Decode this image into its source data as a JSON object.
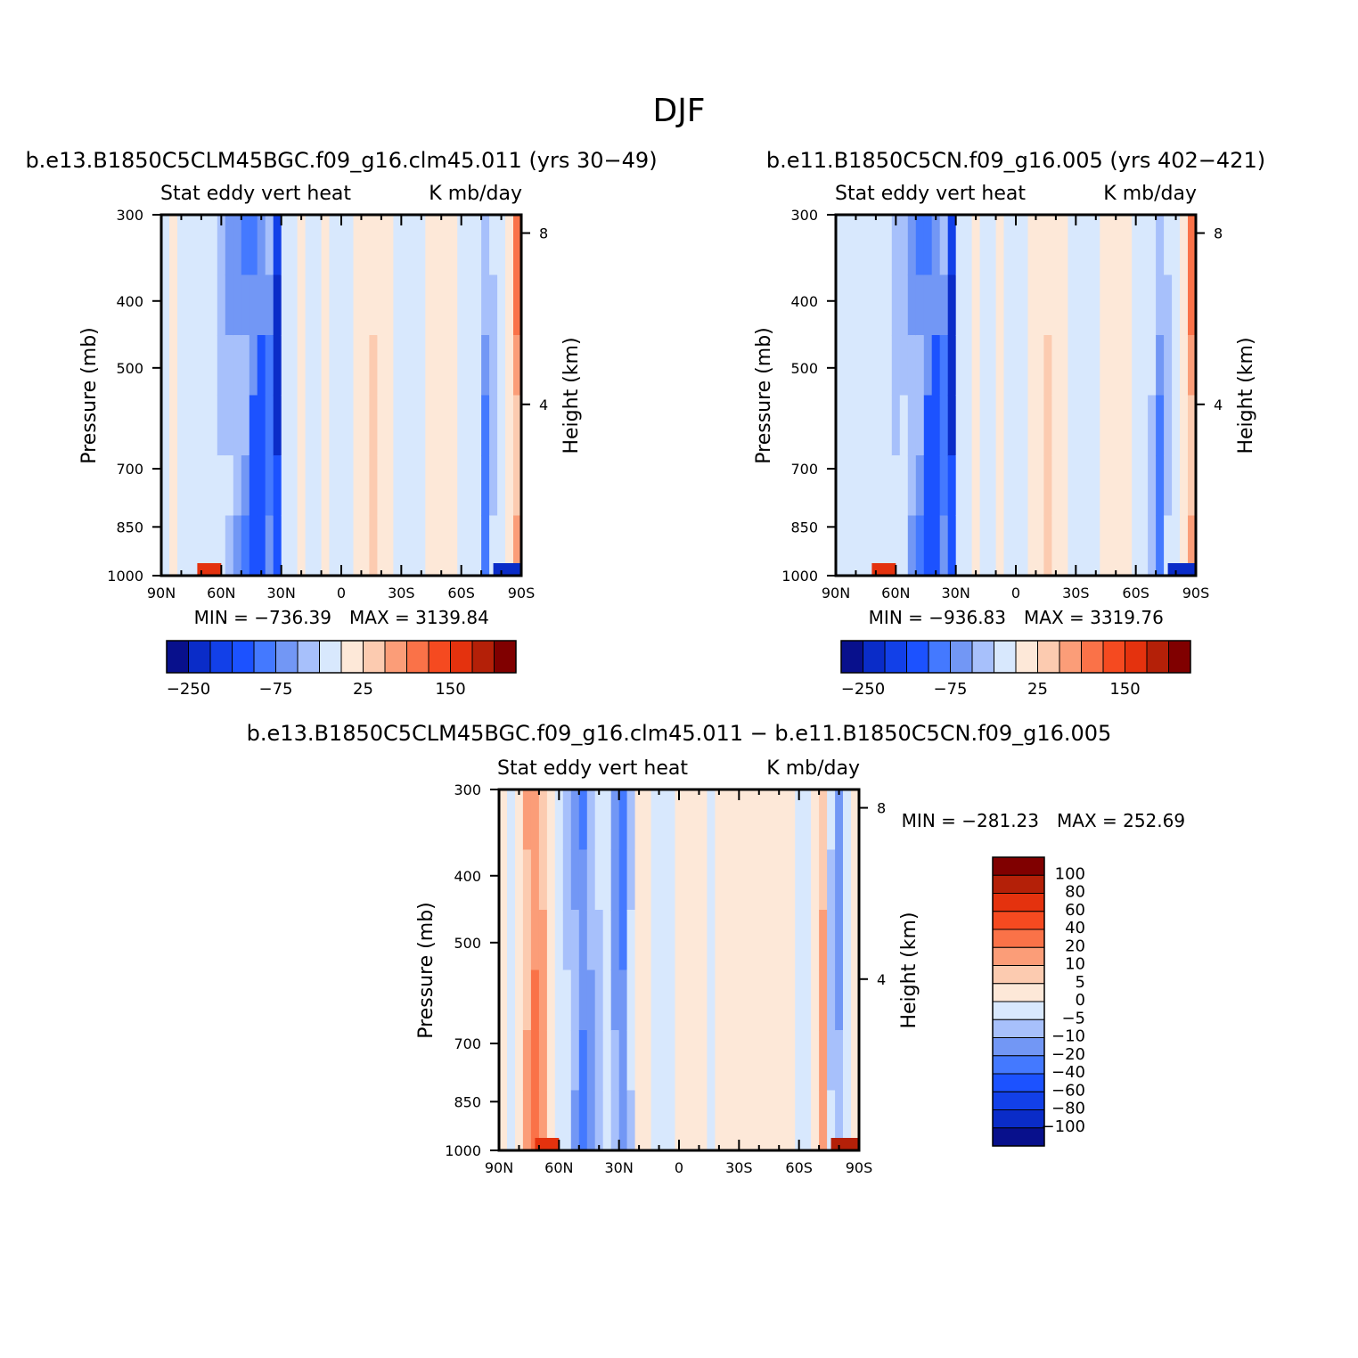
{
  "page": {
    "title": "DJF"
  },
  "palettes": {
    "full": [
      "#08108c",
      "#0a2cc8",
      "#1240e8",
      "#1c52ff",
      "#4479ff",
      "#7297f5",
      "#a7c0fb",
      "#d8e8fd",
      "#fde8d8",
      "#fccbb0",
      "#fb9d78",
      "#fa7248",
      "#f54a20",
      "#e4320e",
      "#b42008",
      "#800000"
    ],
    "diff": [
      "#08108c",
      "#0a2cc8",
      "#1240e8",
      "#1c52ff",
      "#4479ff",
      "#7297f5",
      "#a7c0fb",
      "#d8e8fd",
      "#fde8d8",
      "#fccbb0",
      "#fb9d78",
      "#fa7248",
      "#f54a20",
      "#e4320e",
      "#b42008",
      "#800000"
    ]
  },
  "chart_data": [
    {
      "id": "p1",
      "type": "heatmap",
      "title": "b.e13.B1850C5CLM45BGC.f09_g16.clm45.011 (yrs 30−49)",
      "variable": "Stat eddy vert heat",
      "units": "K mb/day",
      "xlabel": "",
      "ylabel": "Pressure (mb)",
      "y2label": "Height (km)",
      "x_ticks": [
        "90N",
        "60N",
        "30N",
        "0",
        "30S",
        "60S",
        "90S"
      ],
      "y_ticks": [
        "300",
        "400",
        "500",
        "700",
        "850",
        "1000"
      ],
      "y2_ticks": [
        "8",
        "4"
      ],
      "xlim": [
        90,
        -90
      ],
      "ylim": [
        1000,
        300
      ],
      "min_text": "MIN = −736.39",
      "max_text": "MAX = 3139.84",
      "colorbar": {
        "orientation": "horizontal",
        "labels": [
          "−250",
          "−75",
          "25",
          "150"
        ]
      },
      "columns": [
        {
          "lat": 88,
          "v": -5
        },
        {
          "lat": 84,
          "v": 5
        },
        {
          "lat": 80,
          "v": -10
        },
        {
          "lat": 76,
          "v": -5
        },
        {
          "lat": 72,
          "v": -20
        },
        {
          "lat": 68,
          "v": -10
        },
        {
          "lat": 64,
          "v": -20
        },
        {
          "lat": 60,
          "v": -40
        },
        {
          "lat": 56,
          "v": -60
        },
        {
          "lat": 52,
          "v": -75
        },
        {
          "lat": 48,
          "v": -100
        },
        {
          "lat": 44,
          "v": -150
        },
        {
          "lat": 40,
          "v": -150
        },
        {
          "lat": 36,
          "v": -100
        },
        {
          "lat": 32,
          "v": -250
        },
        {
          "lat": 28,
          "v": -20
        },
        {
          "lat": 24,
          "v": -5
        },
        {
          "lat": 20,
          "v": 5
        },
        {
          "lat": 16,
          "v": -10
        },
        {
          "lat": 12,
          "v": -5
        },
        {
          "lat": 8,
          "v": 5
        },
        {
          "lat": 4,
          "v": -5
        },
        {
          "lat": 0,
          "v": -5
        },
        {
          "lat": -4,
          "v": -5
        },
        {
          "lat": -8,
          "v": 5
        },
        {
          "lat": -12,
          "v": 25
        },
        {
          "lat": -16,
          "v": 50
        },
        {
          "lat": -20,
          "v": 25
        },
        {
          "lat": -24,
          "v": 5
        },
        {
          "lat": -28,
          "v": -5
        },
        {
          "lat": -32,
          "v": -5
        },
        {
          "lat": -36,
          "v": -5
        },
        {
          "lat": -40,
          "v": -5
        },
        {
          "lat": -44,
          "v": 5
        },
        {
          "lat": -48,
          "v": 5
        },
        {
          "lat": -52,
          "v": 25
        },
        {
          "lat": -56,
          "v": 5
        },
        {
          "lat": -60,
          "v": -5
        },
        {
          "lat": -64,
          "v": -10
        },
        {
          "lat": -68,
          "v": -20
        },
        {
          "lat": -72,
          "v": -100
        },
        {
          "lat": -76,
          "v": -40
        },
        {
          "lat": -80,
          "v": -10
        },
        {
          "lat": -84,
          "v": 5
        },
        {
          "lat": -88,
          "v": 100
        }
      ]
    },
    {
      "id": "p2",
      "type": "heatmap",
      "title": "b.e11.B1850C5CN.f09_g16.005 (yrs 402−421)",
      "variable": "Stat eddy vert heat",
      "units": "K mb/day",
      "xlabel": "",
      "ylabel": "Pressure (mb)",
      "y2label": "Height (km)",
      "x_ticks": [
        "90N",
        "60N",
        "30N",
        "0",
        "30S",
        "60S",
        "90S"
      ],
      "y_ticks": [
        "300",
        "400",
        "500",
        "700",
        "850",
        "1000"
      ],
      "y2_ticks": [
        "8",
        "4"
      ],
      "xlim": [
        90,
        -90
      ],
      "ylim": [
        1000,
        300
      ],
      "min_text": "MIN = −936.83",
      "max_text": "MAX = 3319.76",
      "colorbar": {
        "orientation": "horizontal",
        "labels": [
          "−250",
          "−75",
          "25",
          "150"
        ]
      },
      "columns": [
        {
          "lat": 88,
          "v": -5
        },
        {
          "lat": 84,
          "v": -10
        },
        {
          "lat": 80,
          "v": -10
        },
        {
          "lat": 76,
          "v": -5
        },
        {
          "lat": 72,
          "v": -20
        },
        {
          "lat": 68,
          "v": -10
        },
        {
          "lat": 64,
          "v": -20
        },
        {
          "lat": 60,
          "v": -40
        },
        {
          "lat": 56,
          "v": -40
        },
        {
          "lat": 52,
          "v": -75
        },
        {
          "lat": 48,
          "v": -100
        },
        {
          "lat": 44,
          "v": -150
        },
        {
          "lat": 40,
          "v": -150
        },
        {
          "lat": 36,
          "v": -100
        },
        {
          "lat": 32,
          "v": -250
        },
        {
          "lat": 28,
          "v": -20
        },
        {
          "lat": 24,
          "v": -5
        },
        {
          "lat": 20,
          "v": 5
        },
        {
          "lat": 16,
          "v": -10
        },
        {
          "lat": 12,
          "v": -5
        },
        {
          "lat": 8,
          "v": 5
        },
        {
          "lat": 4,
          "v": -5
        },
        {
          "lat": 0,
          "v": -5
        },
        {
          "lat": -4,
          "v": -5
        },
        {
          "lat": -8,
          "v": 5
        },
        {
          "lat": -12,
          "v": 25
        },
        {
          "lat": -16,
          "v": 50
        },
        {
          "lat": -20,
          "v": 25
        },
        {
          "lat": -24,
          "v": 5
        },
        {
          "lat": -28,
          "v": -5
        },
        {
          "lat": -32,
          "v": -5
        },
        {
          "lat": -36,
          "v": -5
        },
        {
          "lat": -40,
          "v": -5
        },
        {
          "lat": -44,
          "v": 5
        },
        {
          "lat": -48,
          "v": 5
        },
        {
          "lat": -52,
          "v": 25
        },
        {
          "lat": -56,
          "v": 5
        },
        {
          "lat": -60,
          "v": -5
        },
        {
          "lat": -64,
          "v": -10
        },
        {
          "lat": -68,
          "v": -40
        },
        {
          "lat": -72,
          "v": -100
        },
        {
          "lat": -76,
          "v": -40
        },
        {
          "lat": -80,
          "v": -10
        },
        {
          "lat": -84,
          "v": 5
        },
        {
          "lat": -88,
          "v": 100
        }
      ]
    },
    {
      "id": "p3",
      "type": "heatmap",
      "title": "b.e13.B1850C5CLM45BGC.f09_g16.clm45.011 − b.e11.B1850C5CN.f09_g16.005",
      "variable": "Stat eddy vert heat",
      "units": "K mb/day",
      "xlabel": "",
      "ylabel": "Pressure (mb)",
      "y2label": "Height (km)",
      "x_ticks": [
        "90N",
        "60N",
        "30N",
        "0",
        "30S",
        "60S",
        "90S"
      ],
      "y_ticks": [
        "300",
        "400",
        "500",
        "700",
        "850",
        "1000"
      ],
      "y2_ticks": [
        "8",
        "4"
      ],
      "xlim": [
        90,
        -90
      ],
      "ylim": [
        1000,
        300
      ],
      "min_text": "MIN = −281.23",
      "max_text": "MAX = 252.69",
      "colorbar": {
        "orientation": "vertical",
        "labels": [
          "100",
          "80",
          "60",
          "40",
          "20",
          "10",
          "5",
          "0",
          "−5",
          "−10",
          "−20",
          "−40",
          "−60",
          "−80",
          "−100"
        ]
      },
      "columns": [
        {
          "lat": 88,
          "v": 2
        },
        {
          "lat": 84,
          "v": -3
        },
        {
          "lat": 80,
          "v": 3
        },
        {
          "lat": 76,
          "v": 15
        },
        {
          "lat": 72,
          "v": 30
        },
        {
          "lat": 68,
          "v": 15
        },
        {
          "lat": 64,
          "v": 5
        },
        {
          "lat": 60,
          "v": -3
        },
        {
          "lat": 56,
          "v": -8
        },
        {
          "lat": 52,
          "v": -15
        },
        {
          "lat": 48,
          "v": -30
        },
        {
          "lat": 44,
          "v": -15
        },
        {
          "lat": 40,
          "v": -8
        },
        {
          "lat": 36,
          "v": -3
        },
        {
          "lat": 32,
          "v": -15
        },
        {
          "lat": 28,
          "v": -30
        },
        {
          "lat": 24,
          "v": -8
        },
        {
          "lat": 20,
          "v": 3
        },
        {
          "lat": 16,
          "v": 3
        },
        {
          "lat": 12,
          "v": -3
        },
        {
          "lat": 8,
          "v": -3
        },
        {
          "lat": 4,
          "v": -3
        },
        {
          "lat": 0,
          "v": 3
        },
        {
          "lat": -4,
          "v": 3
        },
        {
          "lat": -8,
          "v": 3
        },
        {
          "lat": -12,
          "v": 3
        },
        {
          "lat": -16,
          "v": -3
        },
        {
          "lat": -20,
          "v": 3
        },
        {
          "lat": -24,
          "v": 3
        },
        {
          "lat": -28,
          "v": 3
        },
        {
          "lat": -32,
          "v": 3
        },
        {
          "lat": -36,
          "v": 3
        },
        {
          "lat": -40,
          "v": 3
        },
        {
          "lat": -44,
          "v": 3
        },
        {
          "lat": -48,
          "v": 3
        },
        {
          "lat": -52,
          "v": 3
        },
        {
          "lat": -56,
          "v": 3
        },
        {
          "lat": -60,
          "v": -3
        },
        {
          "lat": -64,
          "v": -3
        },
        {
          "lat": -68,
          "v": 3
        },
        {
          "lat": -72,
          "v": 15
        },
        {
          "lat": -76,
          "v": -8
        },
        {
          "lat": -80,
          "v": -15
        },
        {
          "lat": -84,
          "v": -3
        },
        {
          "lat": -88,
          "v": 3
        }
      ]
    }
  ]
}
